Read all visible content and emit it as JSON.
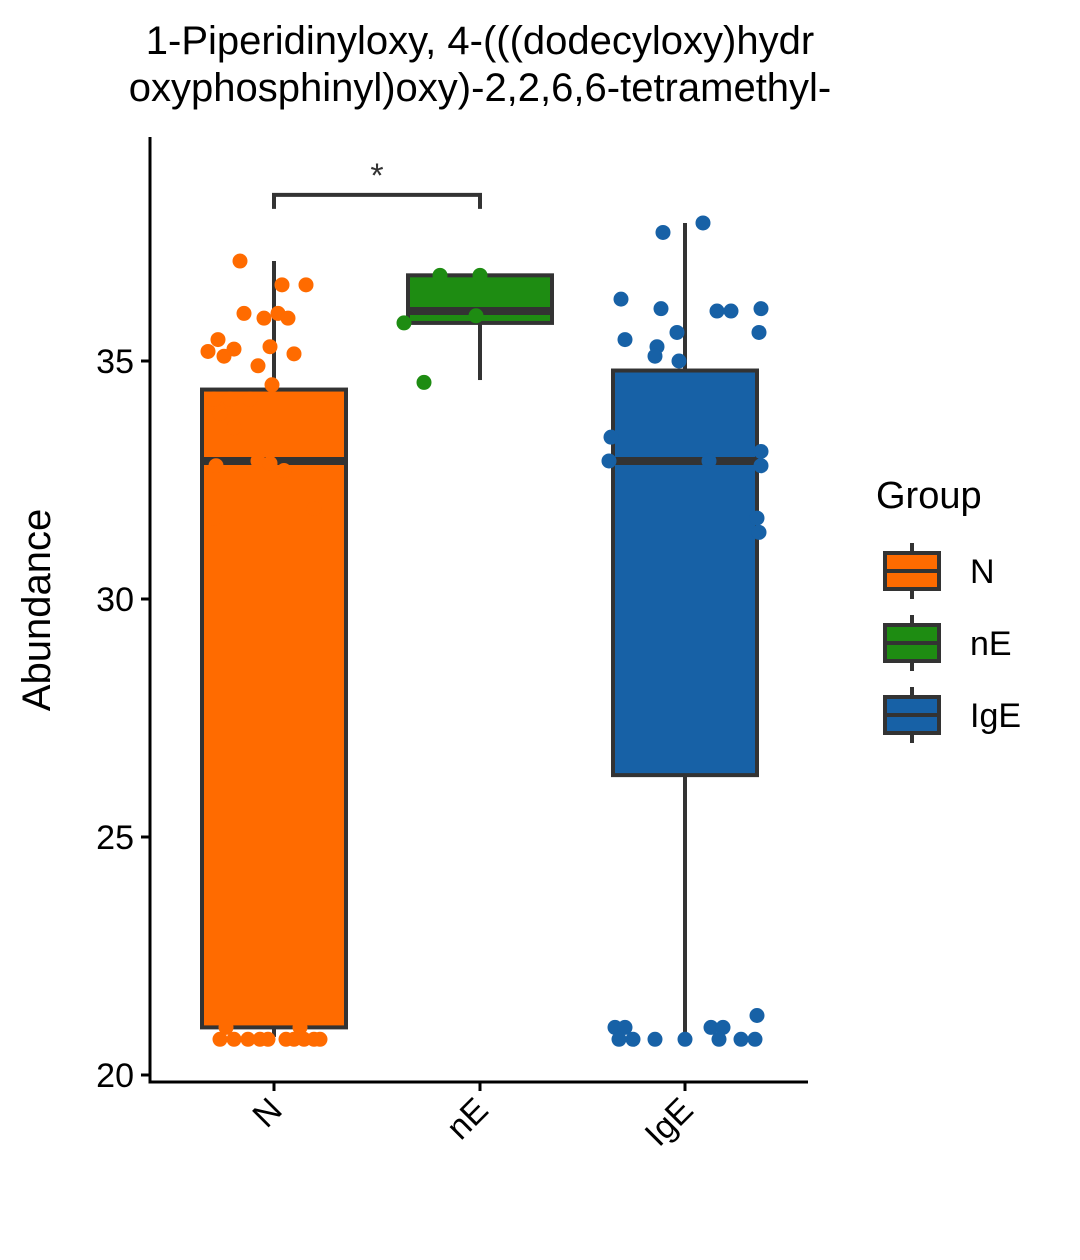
{
  "chart_data": {
    "type": "box",
    "title_lines": [
      "1-Piperidinyloxy, 4-(((dodecyloxy)hydr",
      "oxyphosphinyl)oxy)-2,2,6,6-tetramethyl-"
    ],
    "xlabel": "",
    "ylabel": "Abundance",
    "categories": [
      "N",
      "nE",
      "IgE"
    ],
    "ylim": [
      19.8,
      39.5
    ],
    "yticks": [
      20,
      25,
      30,
      35
    ],
    "ytick_labels": [
      "20",
      "25",
      "30",
      "35"
    ],
    "grid": false,
    "legend": {
      "title": "Group",
      "position": "right",
      "entries": [
        "N",
        "nE",
        "IgE"
      ]
    },
    "colors": {
      "N": "#FF6B00",
      "nE": "#1E8C12",
      "IgE": "#1761A6",
      "outline": "#333333"
    },
    "boxes": [
      {
        "group": "N",
        "q1": 21.0,
        "median": 32.9,
        "q3": 34.4,
        "whisker_low": 20.8,
        "whisker_high": 37.1
      },
      {
        "group": "nE",
        "q1": 35.8,
        "median": 36.05,
        "q3": 36.8,
        "whisker_low": 34.6,
        "whisker_high": 36.8
      },
      {
        "group": "IgE",
        "q1": 26.3,
        "median": 32.9,
        "q3": 34.8,
        "whisker_low": 20.8,
        "whisker_high": 37.9
      }
    ],
    "points": {
      "N": [
        {
          "x": -0.17,
          "y": 37.1
        },
        {
          "x": 0.04,
          "y": 36.6
        },
        {
          "x": 0.16,
          "y": 36.6
        },
        {
          "x": -0.15,
          "y": 36.0
        },
        {
          "x": 0.02,
          "y": 36.0
        },
        {
          "x": 0.07,
          "y": 35.9
        },
        {
          "x": -0.05,
          "y": 35.9
        },
        {
          "x": -0.28,
          "y": 35.45
        },
        {
          "x": -0.33,
          "y": 35.2
        },
        {
          "x": -0.2,
          "y": 35.25
        },
        {
          "x": -0.02,
          "y": 35.3
        },
        {
          "x": 0.1,
          "y": 35.15
        },
        {
          "x": -0.25,
          "y": 35.1
        },
        {
          "x": -0.08,
          "y": 34.9
        },
        {
          "x": -0.01,
          "y": 34.5
        },
        {
          "x": -0.3,
          "y": 34.2
        },
        {
          "x": -0.22,
          "y": 34.2
        },
        {
          "x": -0.12,
          "y": 34.2
        },
        {
          "x": -0.27,
          "y": 33.9
        },
        {
          "x": -0.2,
          "y": 33.6
        },
        {
          "x": -0.29,
          "y": 32.8
        },
        {
          "x": -0.08,
          "y": 32.9
        },
        {
          "x": -0.02,
          "y": 32.85
        },
        {
          "x": 0.05,
          "y": 32.7
        },
        {
          "x": -0.3,
          "y": 31.7
        },
        {
          "x": 0.2,
          "y": 31.9
        },
        {
          "x": -0.24,
          "y": 21.0
        },
        {
          "x": 0.13,
          "y": 21.0
        },
        {
          "x": -0.27,
          "y": 20.75
        },
        {
          "x": -0.2,
          "y": 20.75
        },
        {
          "x": -0.13,
          "y": 20.75
        },
        {
          "x": -0.07,
          "y": 20.75
        },
        {
          "x": -0.03,
          "y": 20.75
        },
        {
          "x": 0.06,
          "y": 20.75
        },
        {
          "x": 0.1,
          "y": 20.75
        },
        {
          "x": 0.15,
          "y": 20.75
        },
        {
          "x": 0.2,
          "y": 20.75
        },
        {
          "x": 0.23,
          "y": 20.75
        }
      ],
      "nE": [
        {
          "x": -0.2,
          "y": 36.8
        },
        {
          "x": 0.0,
          "y": 36.8
        },
        {
          "x": -0.38,
          "y": 35.8
        },
        {
          "x": -0.02,
          "y": 35.95
        },
        {
          "x": -0.28,
          "y": 34.55
        }
      ],
      "IgE": [
        {
          "x": 0.09,
          "y": 37.9
        },
        {
          "x": -0.11,
          "y": 37.7
        },
        {
          "x": -0.32,
          "y": 36.3
        },
        {
          "x": -0.12,
          "y": 36.1
        },
        {
          "x": 0.16,
          "y": 36.05
        },
        {
          "x": 0.23,
          "y": 36.05
        },
        {
          "x": 0.38,
          "y": 36.1
        },
        {
          "x": -0.3,
          "y": 35.45
        },
        {
          "x": -0.14,
          "y": 35.3
        },
        {
          "x": -0.15,
          "y": 35.1
        },
        {
          "x": -0.04,
          "y": 35.6
        },
        {
          "x": 0.37,
          "y": 35.6
        },
        {
          "x": -0.03,
          "y": 35.0
        },
        {
          "x": -0.37,
          "y": 33.4
        },
        {
          "x": 0.38,
          "y": 33.1
        },
        {
          "x": -0.38,
          "y": 32.9
        },
        {
          "x": 0.12,
          "y": 32.9
        },
        {
          "x": 0.38,
          "y": 32.8
        },
        {
          "x": 0.36,
          "y": 31.7
        },
        {
          "x": 0.37,
          "y": 31.4
        },
        {
          "x": -0.35,
          "y": 21.0
        },
        {
          "x": -0.3,
          "y": 21.0
        },
        {
          "x": 0.13,
          "y": 21.0
        },
        {
          "x": 0.19,
          "y": 21.0
        },
        {
          "x": 0.36,
          "y": 21.25
        },
        {
          "x": -0.33,
          "y": 20.75
        },
        {
          "x": -0.26,
          "y": 20.75
        },
        {
          "x": -0.15,
          "y": 20.75
        },
        {
          "x": 0.0,
          "y": 20.75
        },
        {
          "x": 0.17,
          "y": 20.75
        },
        {
          "x": 0.28,
          "y": 20.75
        },
        {
          "x": 0.35,
          "y": 20.75
        }
      ]
    },
    "significance": [
      {
        "from": "N",
        "to": "nE",
        "label": "*",
        "y": 38.7
      }
    ]
  }
}
